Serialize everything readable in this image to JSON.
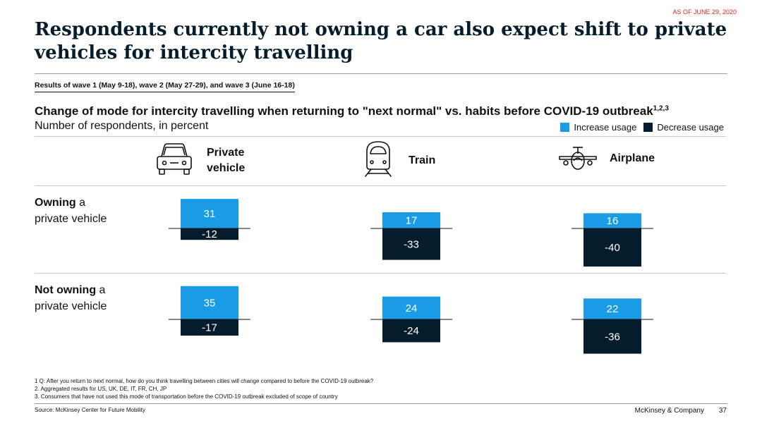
{
  "header": {
    "as_of": "AS OF JUNE 29, 2020",
    "title": "Respondents currently not owning a car also expect shift to private vehicles for intercity travelling",
    "waves": "Results of wave 1 (May 9-18), wave 2 (May 27-29), and wave 3 (June 16-18)"
  },
  "colors": {
    "increase": "#1a9be6",
    "decrease": "#051c2c",
    "accent": "#e2231a"
  },
  "chart_data": {
    "type": "bar",
    "title": "Change of mode for intercity travelling when returning to \"next normal\" vs. habits before COVID-19 outbreak",
    "title_sup": "1,2,3",
    "unit": "Number of respondents, in percent",
    "legend": [
      "Increase usage",
      "Decrease usage"
    ],
    "modes": [
      {
        "label_line1": "Private",
        "label_line2": "vehicle",
        "icon": "car-icon"
      },
      {
        "label_line1": "Train",
        "label_line2": "",
        "icon": "train-icon"
      },
      {
        "label_line1": "Airplane",
        "label_line2": "",
        "icon": "airplane-icon"
      }
    ],
    "groups": [
      {
        "label_bold": "Owning",
        "label_rest1": " a",
        "label_line2": "private vehicle",
        "increase": [
          31,
          17,
          16
        ],
        "decrease": [
          -12,
          -33,
          -40
        ]
      },
      {
        "label_bold": "Not owning",
        "label_rest1": " a",
        "label_line2": "private vehicle",
        "increase": [
          35,
          24,
          22
        ],
        "decrease": [
          -17,
          -24,
          -36
        ]
      }
    ]
  },
  "footer": {
    "footnote1": "1 Q: After you return to next normal, how do you think travelling between cities will change compared to before the COVID-19 outbreak?",
    "footnote2": "2. Aggregated results for US, UK, DE, IT, FR, CH, JP",
    "footnote3": "3. Consumers that have not used this mode of transportation before the COVID-19 outbreak excluded of scope of country",
    "source": "Source: McKinsey Center for Future Mobility",
    "brand": "McKinsey & Company",
    "page": "37"
  }
}
